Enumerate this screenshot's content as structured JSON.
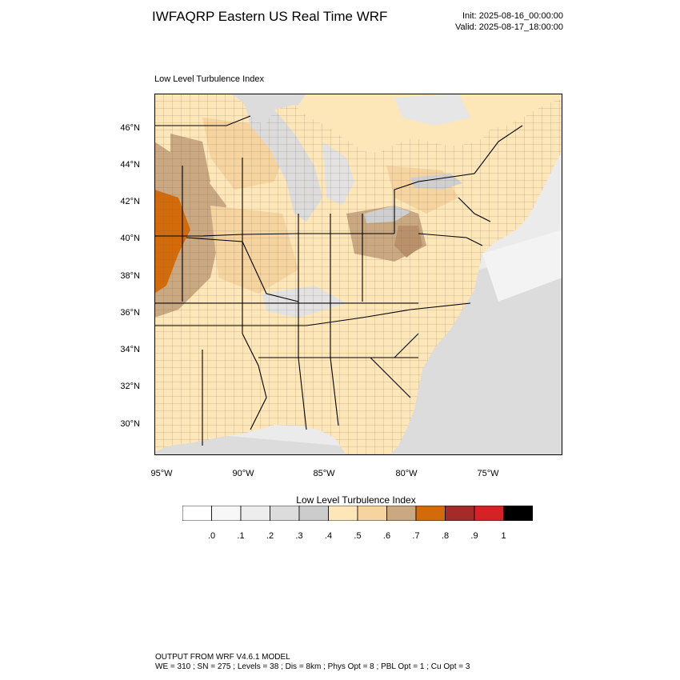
{
  "header": {
    "title": "IWFAQRP Eastern US Real Time WRF",
    "init": "Init: 2025-08-16_00:00:00",
    "valid": "Valid: 2025-08-17_18:00:00"
  },
  "map": {
    "subtitle": "Low Level Turbulence Index",
    "lat_labels": [
      "46°N",
      "44°N",
      "42°N",
      "40°N",
      "38°N",
      "36°N",
      "34°N",
      "32°N",
      "30°N"
    ],
    "lon_labels": [
      "95°W",
      "90°W",
      "85°W",
      "80°W",
      "75°W"
    ],
    "fill_colors": {
      "land_low": "#fde6b8",
      "land_mid": "#f5d4a0",
      "land_high": "#c9a882",
      "peak": "#d36b0a",
      "water_gray": "#dcdcdc",
      "water_light": "#ebebeb",
      "lake_gray": "#cfcfcf"
    }
  },
  "colorbar": {
    "title": "Low Level Turbulence Index",
    "tick_labels": [
      ".0",
      ".1",
      ".2",
      ".3",
      ".4",
      ".5",
      ".6",
      ".7",
      ".8",
      ".9",
      "1"
    ],
    "colors": [
      "#ffffff",
      "#f7f7f7",
      "#ededed",
      "#dcdcdc",
      "#cccccc",
      "#fde6b8",
      "#f5d4a0",
      "#c9a882",
      "#d36b0a",
      "#a52a2a",
      "#d42227",
      "#000000"
    ]
  },
  "footer": {
    "line1": "OUTPUT FROM WRF V4.6.1 MODEL",
    "line2": "WE = 310 ; SN = 275 ; Levels = 38 ; Dis = 8km ; Phys Opt = 8 ; PBL Opt = 1 ; Cu Opt = 3"
  }
}
